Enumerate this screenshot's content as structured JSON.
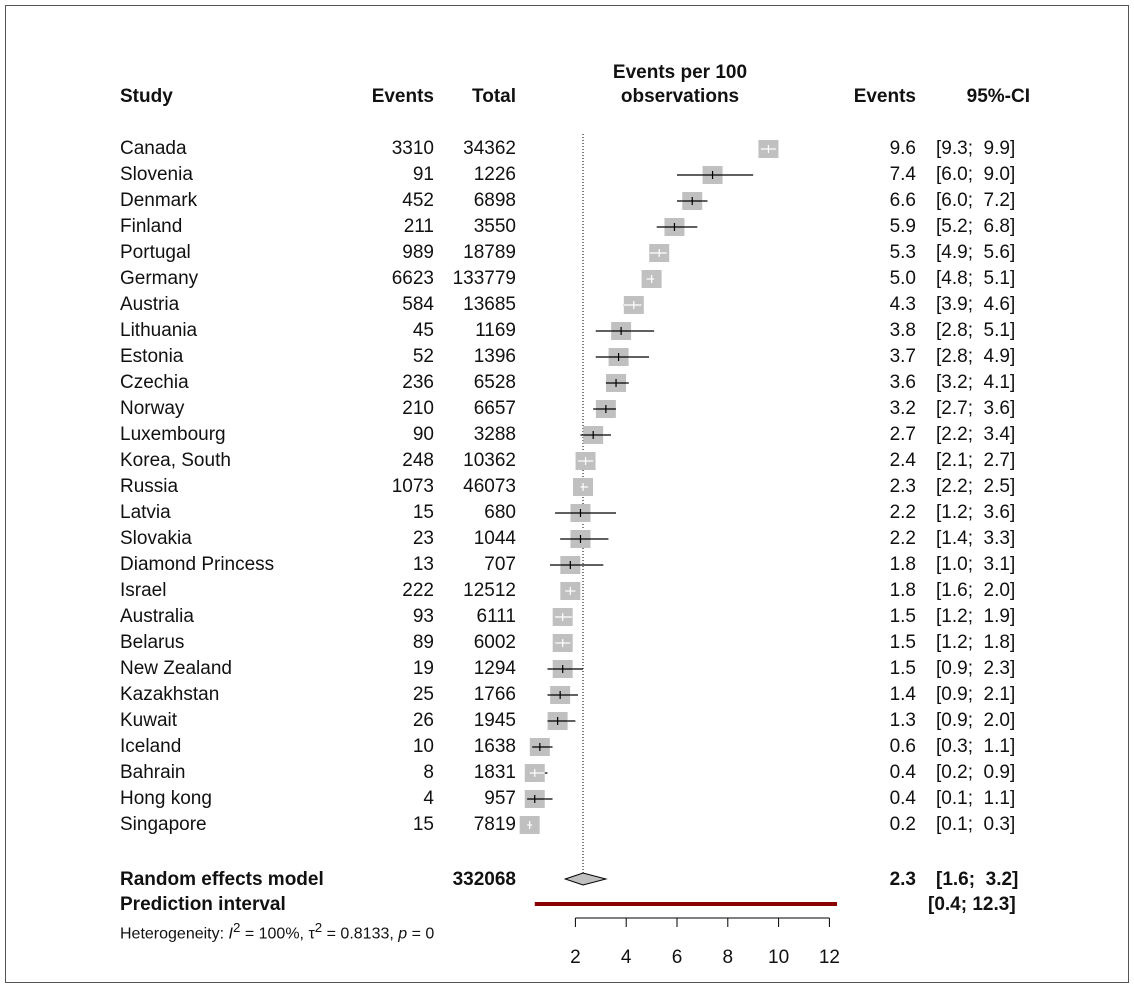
{
  "columns": {
    "study": "Study",
    "events": "Events",
    "total": "Total",
    "plot_header_line1": "Events per 100",
    "plot_header_line2": "observations",
    "rate": "Events",
    "ci": "95%-CI"
  },
  "rows": [
    {
      "study": "Canada",
      "events": "3310",
      "total": "34362",
      "rate": "9.6",
      "ci": "[9.3;  9.9]"
    },
    {
      "study": "Slovenia",
      "events": "91",
      "total": "1226",
      "rate": "7.4",
      "ci": "[6.0;  9.0]"
    },
    {
      "study": "Denmark",
      "events": "452",
      "total": "6898",
      "rate": "6.6",
      "ci": "[6.0;  7.2]"
    },
    {
      "study": "Finland",
      "events": "211",
      "total": "3550",
      "rate": "5.9",
      "ci": "[5.2;  6.8]"
    },
    {
      "study": "Portugal",
      "events": "989",
      "total": "18789",
      "rate": "5.3",
      "ci": "[4.9;  5.6]"
    },
    {
      "study": "Germany",
      "events": "6623",
      "total": "133779",
      "rate": "5.0",
      "ci": "[4.8;  5.1]"
    },
    {
      "study": "Austria",
      "events": "584",
      "total": "13685",
      "rate": "4.3",
      "ci": "[3.9;  4.6]"
    },
    {
      "study": "Lithuania",
      "events": "45",
      "total": "1169",
      "rate": "3.8",
      "ci": "[2.8;  5.1]"
    },
    {
      "study": "Estonia",
      "events": "52",
      "total": "1396",
      "rate": "3.7",
      "ci": "[2.8;  4.9]"
    },
    {
      "study": "Czechia",
      "events": "236",
      "total": "6528",
      "rate": "3.6",
      "ci": "[3.2;  4.1]"
    },
    {
      "study": "Norway",
      "events": "210",
      "total": "6657",
      "rate": "3.2",
      "ci": "[2.7;  3.6]"
    },
    {
      "study": "Luxembourg",
      "events": "90",
      "total": "3288",
      "rate": "2.7",
      "ci": "[2.2;  3.4]"
    },
    {
      "study": "Korea, South",
      "events": "248",
      "total": "10362",
      "rate": "2.4",
      "ci": "[2.1;  2.7]"
    },
    {
      "study": "Russia",
      "events": "1073",
      "total": "46073",
      "rate": "2.3",
      "ci": "[2.2;  2.5]"
    },
    {
      "study": "Latvia",
      "events": "15",
      "total": "680",
      "rate": "2.2",
      "ci": "[1.2;  3.6]"
    },
    {
      "study": "Slovakia",
      "events": "23",
      "total": "1044",
      "rate": "2.2",
      "ci": "[1.4;  3.3]"
    },
    {
      "study": "Diamond Princess",
      "events": "13",
      "total": "707",
      "rate": "1.8",
      "ci": "[1.0;  3.1]"
    },
    {
      "study": "Israel",
      "events": "222",
      "total": "12512",
      "rate": "1.8",
      "ci": "[1.6;  2.0]"
    },
    {
      "study": "Australia",
      "events": "93",
      "total": "6111",
      "rate": "1.5",
      "ci": "[1.2;  1.9]"
    },
    {
      "study": "Belarus",
      "events": "89",
      "total": "6002",
      "rate": "1.5",
      "ci": "[1.2;  1.8]"
    },
    {
      "study": "New Zealand",
      "events": "19",
      "total": "1294",
      "rate": "1.5",
      "ci": "[0.9;  2.3]"
    },
    {
      "study": "Kazakhstan",
      "events": "25",
      "total": "1766",
      "rate": "1.4",
      "ci": "[0.9;  2.1]"
    },
    {
      "study": "Kuwait",
      "events": "26",
      "total": "1945",
      "rate": "1.3",
      "ci": "[0.9;  2.0]"
    },
    {
      "study": "Iceland",
      "events": "10",
      "total": "1638",
      "rate": "0.6",
      "ci": "[0.3;  1.1]"
    },
    {
      "study": "Bahrain",
      "events": "8",
      "total": "1831",
      "rate": "0.4",
      "ci": "[0.2;  0.9]"
    },
    {
      "study": "Hong kong",
      "events": "4",
      "total": "957",
      "rate": "0.4",
      "ci": "[0.1;  1.1]"
    },
    {
      "study": "Singapore",
      "events": "15",
      "total": "7819",
      "rate": "0.2",
      "ci": "[0.1;  0.3]"
    }
  ],
  "summary": {
    "random_label": "Random effects model",
    "random_total": "332068",
    "random_rate": "2.3",
    "random_ci": "[1.6;  3.2]",
    "prediction_label": "Prediction interval",
    "prediction_ci": "[0.4; 12.3]",
    "heterogeneity_prefix": "Heterogeneity: ",
    "i2_symbol": "I",
    "i2_sup": "2",
    "i2_value": " = 100%, ",
    "tau2_symbol": "τ",
    "tau2_sup": "2",
    "tau2_value": " = 0.8133, ",
    "p_symbol": "p",
    "p_value": " = 0"
  },
  "colors": {
    "box": "#c0c0c0",
    "ci_line": "#000000",
    "ci_inside_box": "#ffffff",
    "prediction": "#8b0000",
    "diamond_fill": "#c0c0c0"
  },
  "chart_data": {
    "type": "forest",
    "xlabel": "",
    "x_ticks": [
      2,
      4,
      6,
      8,
      10,
      12
    ],
    "x_range": [
      0,
      12.3
    ],
    "null_line": 2.3,
    "studies": [
      {
        "name": "Canada",
        "est": 9.6,
        "lo": 9.3,
        "hi": 9.9
      },
      {
        "name": "Slovenia",
        "est": 7.4,
        "lo": 6.0,
        "hi": 9.0
      },
      {
        "name": "Denmark",
        "est": 6.6,
        "lo": 6.0,
        "hi": 7.2
      },
      {
        "name": "Finland",
        "est": 5.9,
        "lo": 5.2,
        "hi": 6.8
      },
      {
        "name": "Portugal",
        "est": 5.3,
        "lo": 4.9,
        "hi": 5.6
      },
      {
        "name": "Germany",
        "est": 5.0,
        "lo": 4.8,
        "hi": 5.1
      },
      {
        "name": "Austria",
        "est": 4.3,
        "lo": 3.9,
        "hi": 4.6
      },
      {
        "name": "Lithuania",
        "est": 3.8,
        "lo": 2.8,
        "hi": 5.1
      },
      {
        "name": "Estonia",
        "est": 3.7,
        "lo": 2.8,
        "hi": 4.9
      },
      {
        "name": "Czechia",
        "est": 3.6,
        "lo": 3.2,
        "hi": 4.1
      },
      {
        "name": "Norway",
        "est": 3.2,
        "lo": 2.7,
        "hi": 3.6
      },
      {
        "name": "Luxembourg",
        "est": 2.7,
        "lo": 2.2,
        "hi": 3.4
      },
      {
        "name": "Korea, South",
        "est": 2.4,
        "lo": 2.1,
        "hi": 2.7
      },
      {
        "name": "Russia",
        "est": 2.3,
        "lo": 2.2,
        "hi": 2.5
      },
      {
        "name": "Latvia",
        "est": 2.2,
        "lo": 1.2,
        "hi": 3.6
      },
      {
        "name": "Slovakia",
        "est": 2.2,
        "lo": 1.4,
        "hi": 3.3
      },
      {
        "name": "Diamond Princess",
        "est": 1.8,
        "lo": 1.0,
        "hi": 3.1
      },
      {
        "name": "Israel",
        "est": 1.8,
        "lo": 1.6,
        "hi": 2.0
      },
      {
        "name": "Australia",
        "est": 1.5,
        "lo": 1.2,
        "hi": 1.9
      },
      {
        "name": "Belarus",
        "est": 1.5,
        "lo": 1.2,
        "hi": 1.8
      },
      {
        "name": "New Zealand",
        "est": 1.5,
        "lo": 0.9,
        "hi": 2.3
      },
      {
        "name": "Kazakhstan",
        "est": 1.4,
        "lo": 0.9,
        "hi": 2.1
      },
      {
        "name": "Kuwait",
        "est": 1.3,
        "lo": 0.9,
        "hi": 2.0
      },
      {
        "name": "Iceland",
        "est": 0.6,
        "lo": 0.3,
        "hi": 1.1
      },
      {
        "name": "Bahrain",
        "est": 0.4,
        "lo": 0.2,
        "hi": 0.9
      },
      {
        "name": "Hong kong",
        "est": 0.4,
        "lo": 0.1,
        "hi": 1.1
      },
      {
        "name": "Singapore",
        "est": 0.2,
        "lo": 0.1,
        "hi": 0.3
      }
    ],
    "random_effects": {
      "est": 2.3,
      "lo": 1.6,
      "hi": 3.2
    },
    "prediction_interval": {
      "lo": 0.4,
      "hi": 12.3
    }
  }
}
